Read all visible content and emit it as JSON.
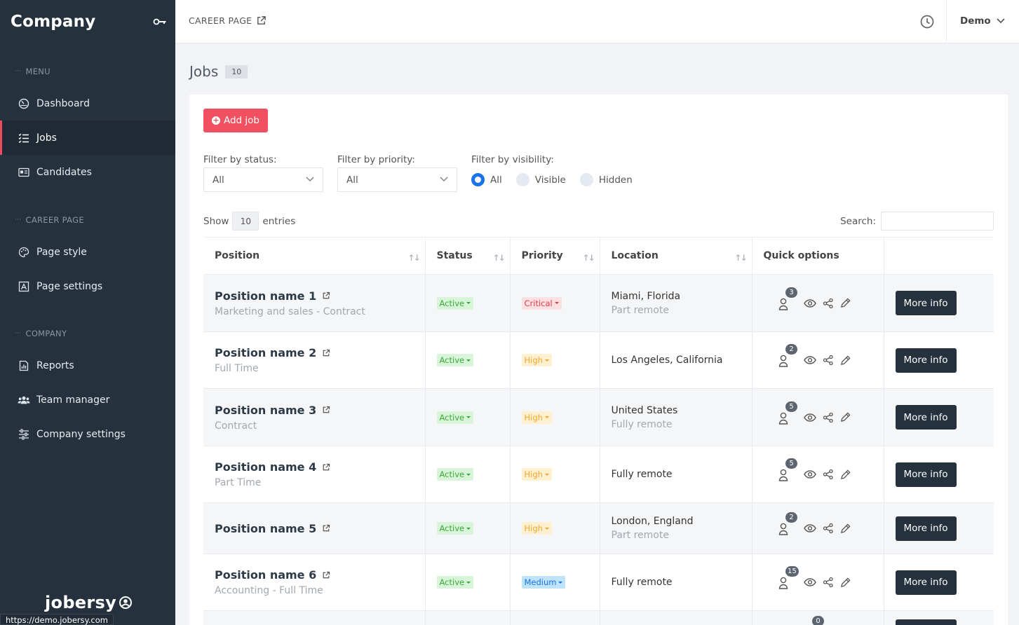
{
  "app": {
    "company_name": "Company",
    "logo_text": "jobersy",
    "status_url": "https://demo.jobersy.com"
  },
  "sidebar": {
    "sections": [
      {
        "title": "MENU",
        "items": [
          {
            "label": "Dashboard",
            "icon": "dashboard-icon"
          },
          {
            "label": "Jobs",
            "icon": "list-icon",
            "active": true
          },
          {
            "label": "Candidates",
            "icon": "id-card-icon"
          }
        ]
      },
      {
        "title": "CAREER PAGE",
        "items": [
          {
            "label": "Page style",
            "icon": "palette-icon"
          },
          {
            "label": "Page settings",
            "icon": "page-icon"
          }
        ]
      },
      {
        "title": "COMPANY",
        "items": [
          {
            "label": "Reports",
            "icon": "report-icon"
          },
          {
            "label": "Team manager",
            "icon": "users-icon"
          },
          {
            "label": "Company settings",
            "icon": "sliders-icon"
          }
        ]
      }
    ]
  },
  "topbar": {
    "career_link": "CAREER PAGE",
    "user": "Demo"
  },
  "page": {
    "title": "Jobs",
    "count": "10",
    "add_button": "Add job"
  },
  "filters": {
    "status_label": "Filter by status:",
    "status_value": "All",
    "priority_label": "Filter by priority:",
    "priority_value": "All",
    "visibility_label": "Filter by visibility:",
    "visibility_options": [
      "All",
      "Visible",
      "Hidden"
    ],
    "visibility_selected": "All"
  },
  "table_controls": {
    "show": "Show",
    "entries_value": "10",
    "entries": "entries",
    "search_label": "Search:"
  },
  "table": {
    "columns": [
      "Position",
      "Status",
      "Priority",
      "Location",
      "Quick options",
      ""
    ],
    "more_label": "More info",
    "rows": [
      {
        "position": "Position name 1",
        "subtitle": "Marketing and sales - Contract",
        "status": "Active",
        "priority": "Critical",
        "location": "Miami, Florida",
        "location_sub": "Part remote",
        "candidates": "3"
      },
      {
        "position": "Position name 2",
        "subtitle": "Full Time",
        "status": "Active",
        "priority": "High",
        "location": "Los Angeles, California",
        "location_sub": "",
        "candidates": "2"
      },
      {
        "position": "Position name 3",
        "subtitle": "Contract",
        "status": "Active",
        "priority": "High",
        "location": "United States",
        "location_sub": "Fully remote",
        "candidates": "5"
      },
      {
        "position": "Position name 4",
        "subtitle": "Part Time",
        "status": "Active",
        "priority": "High",
        "location": "Fully remote",
        "location_sub": "",
        "candidates": "5"
      },
      {
        "position": "Position name 5",
        "subtitle": "",
        "status": "Active",
        "priority": "High",
        "location": "London, England",
        "location_sub": "Part remote",
        "candidates": "2"
      },
      {
        "position": "Position name 6",
        "subtitle": "Accounting - Full Time",
        "status": "Active",
        "priority": "Medium",
        "location": "Fully remote",
        "location_sub": "",
        "candidates": "15"
      },
      {
        "position": "",
        "subtitle": "",
        "status": "",
        "priority": "",
        "location": "",
        "location_sub": "",
        "candidates": "0"
      }
    ]
  },
  "colors": {
    "sidebar_bg": "#25313d",
    "accent": "#f0505f",
    "status_active": {
      "bg": "#d9f5d9",
      "fg": "#3aa93a"
    },
    "priority": {
      "Critical": {
        "bg": "#fde0e2",
        "fg": "#e03a4e"
      },
      "High": {
        "bg": "#fff0cf",
        "fg": "#f0a830"
      },
      "Medium": {
        "bg": "#bfe3fb",
        "fg": "#1a73e8"
      }
    }
  }
}
